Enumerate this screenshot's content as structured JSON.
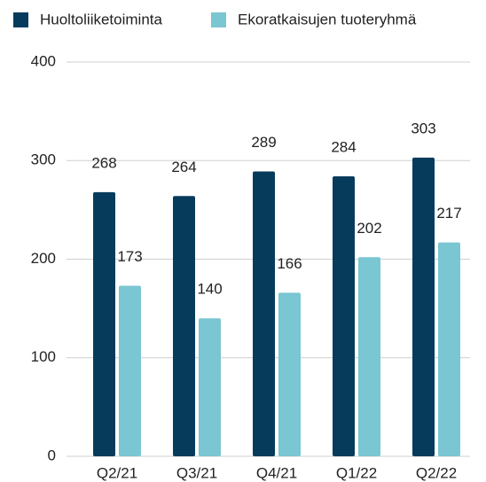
{
  "chart_data": {
    "type": "bar",
    "categories": [
      "Q2/21",
      "Q3/21",
      "Q4/21",
      "Q1/22",
      "Q2/22"
    ],
    "series": [
      {
        "name": "Huoltoliiketoiminta",
        "color": "#073b5c",
        "values": [
          268,
          264,
          289,
          284,
          303
        ]
      },
      {
        "name": "Ekoratkaisujen tuoteryhmä",
        "color": "#7ac6d2",
        "values": [
          173,
          140,
          166,
          202,
          217
        ]
      }
    ],
    "ylim": [
      0,
      400
    ],
    "yticks": [
      0,
      100,
      200,
      300,
      400
    ],
    "grid": true,
    "legend": "top"
  }
}
